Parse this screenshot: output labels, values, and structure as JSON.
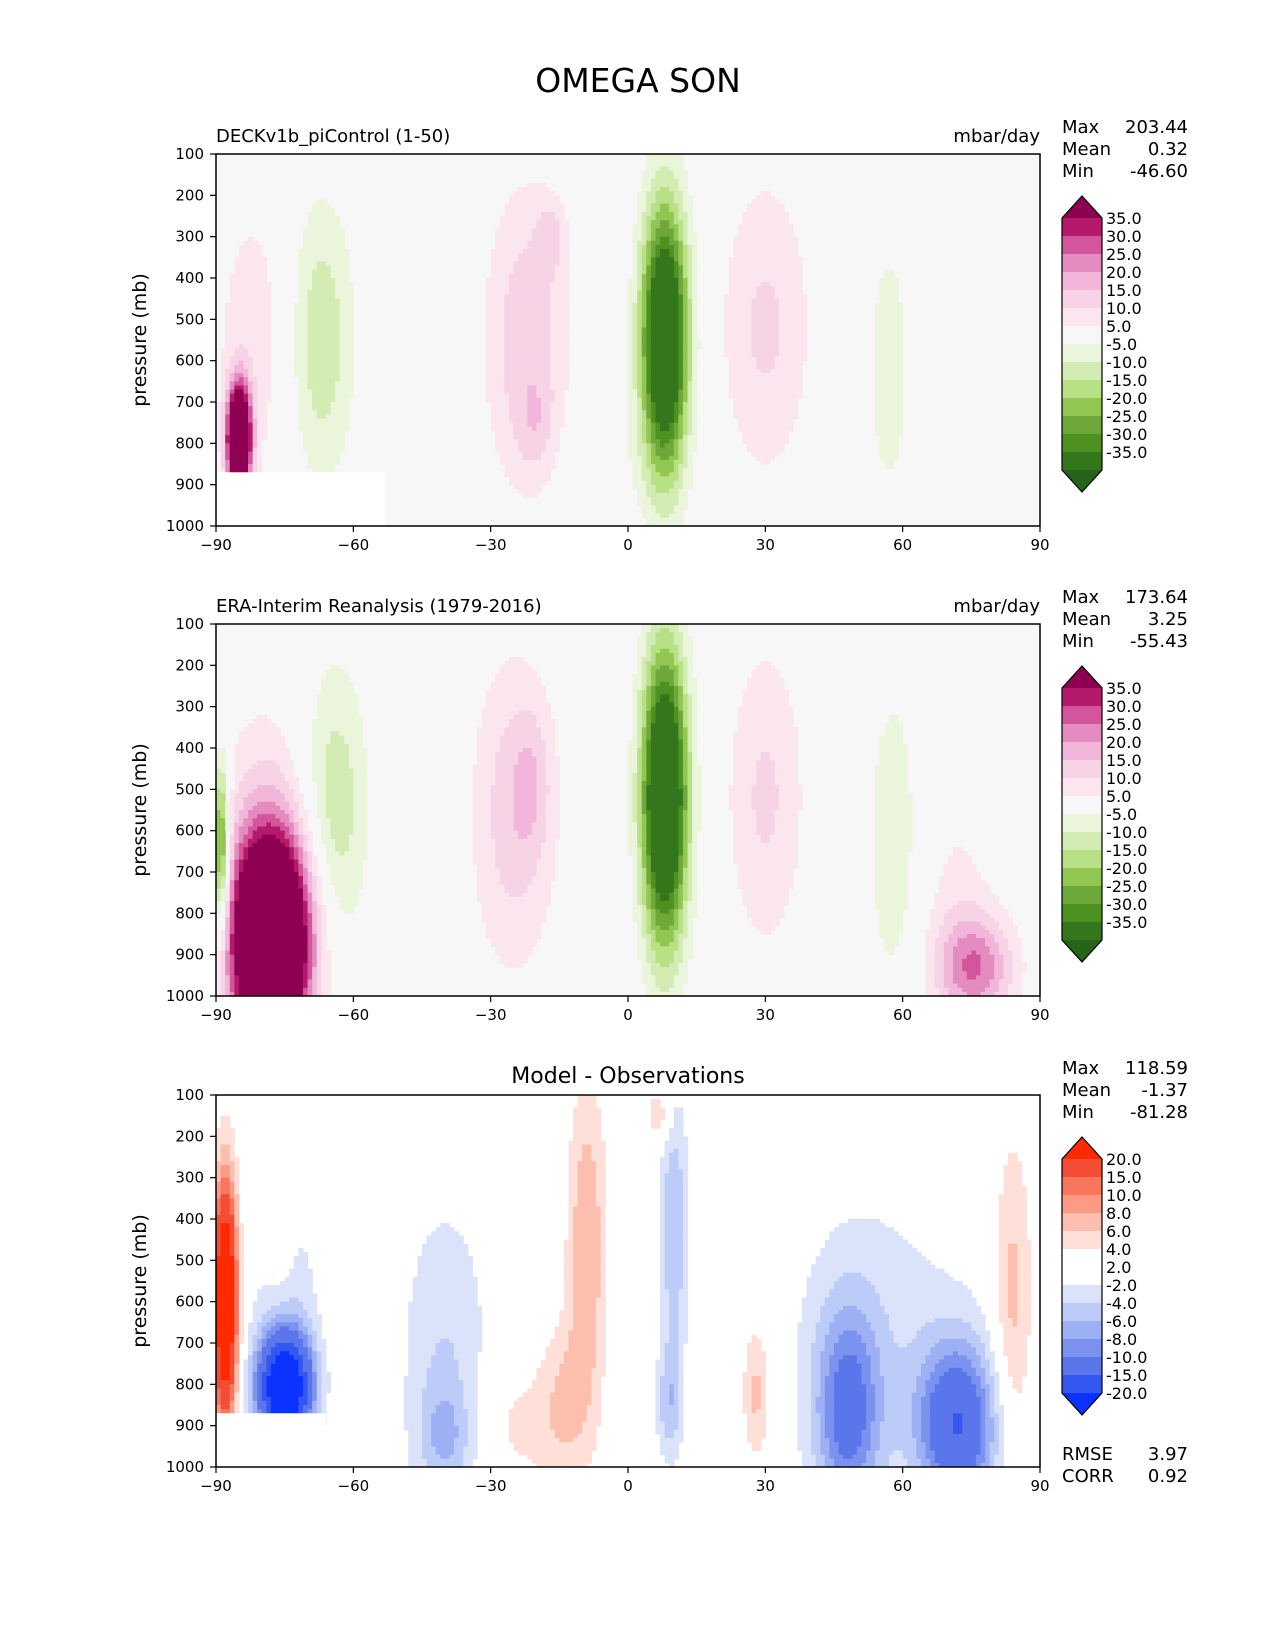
{
  "figure": {
    "title": "OMEGA SON"
  },
  "colors": {
    "pos_model": [
      "#f7f7f7",
      "#fbe5ef",
      "#f7d3e6",
      "#f1b6da",
      "#e48cc0",
      "#d3569d",
      "#b4196a",
      "#8e0152"
    ],
    "neg_model": [
      "#eaf5db",
      "#d2ecb3",
      "#b8e186",
      "#92c653",
      "#6fa83a",
      "#4d9221",
      "#33761c",
      "#276419"
    ],
    "pos_diff": [
      "#ffffff",
      "#fee0d8",
      "#fcbfae",
      "#fc9a85",
      "#f8755e",
      "#f44d35",
      "#ff2a00"
    ],
    "neg_diff": [
      "#dbe3fb",
      "#bccbf7",
      "#9db0f3",
      "#7b93ee",
      "#5a76ea",
      "#3357f0",
      "#0a33ff"
    ]
  },
  "chart_data": [
    {
      "type": "contour",
      "panel": "top",
      "left_title": "DECKv1b_piControl (1-50)",
      "right_title": "mbar/day",
      "ylabel": "pressure (mb)",
      "xlim": [
        -90,
        90
      ],
      "ylim": [
        1000,
        100
      ],
      "xticks": [
        "−90",
        "−60",
        "−30",
        "0",
        "30",
        "60",
        "90"
      ],
      "yticks": [
        "100",
        "200",
        "300",
        "400",
        "500",
        "600",
        "700",
        "800",
        "900",
        "1000"
      ],
      "stats": [
        {
          "label": "Max",
          "value": "203.44"
        },
        {
          "label": "Mean",
          "value": "0.32"
        },
        {
          "label": "Min",
          "value": "-46.60"
        }
      ],
      "colorbar_labels": [
        "35.0",
        "30.0",
        "25.0",
        "20.0",
        "15.0",
        "10.0",
        "5.0",
        "-5.0",
        "-10.0",
        "-15.0",
        "-20.0",
        "-25.0",
        "-30.0",
        "-35.0"
      ],
      "features": [
        {
          "x": 8,
          "p": 550,
          "sx": 3.6,
          "sp": 230,
          "amp": -55
        },
        {
          "x": -22,
          "p": 550,
          "sx": 6.5,
          "sp": 260,
          "amp": 14
        },
        {
          "x": -17,
          "p": 300,
          "sx": 2.2,
          "sp": 60,
          "amp": 8
        },
        {
          "x": -20,
          "p": 760,
          "sx": 3,
          "sp": 80,
          "amp": 6
        },
        {
          "x": 30,
          "p": 520,
          "sx": 7,
          "sp": 260,
          "amp": 11
        },
        {
          "x": -67,
          "p": 550,
          "sx": 5,
          "sp": 240,
          "amp": -14
        },
        {
          "x": -82,
          "p": 550,
          "sx": 6,
          "sp": 260,
          "amp": 8
        },
        {
          "x": -85,
          "p": 790,
          "sx": 1.8,
          "sp": 90,
          "amp": 70
        },
        {
          "x": 57,
          "p": 620,
          "sx": 4,
          "sp": 300,
          "amp": -7
        },
        {
          "x": -6,
          "p": 850,
          "sx": 8,
          "sp": 120,
          "amp": -3
        }
      ],
      "mask": {
        "x": [
          -90,
          -53
        ],
        "p": [
          870,
          1000
        ]
      }
    },
    {
      "type": "contour",
      "panel": "middle",
      "left_title": "ERA-Interim Reanalysis (1979-2016)",
      "right_title": "mbar/day",
      "ylabel": "pressure (mb)",
      "xlim": [
        -90,
        90
      ],
      "ylim": [
        1000,
        100
      ],
      "xticks": [
        "−90",
        "−60",
        "−30",
        "0",
        "30",
        "60",
        "90"
      ],
      "yticks": [
        "100",
        "200",
        "300",
        "400",
        "500",
        "600",
        "700",
        "800",
        "900",
        "1000"
      ],
      "stats": [
        {
          "label": "Max",
          "value": "173.64"
        },
        {
          "label": "Mean",
          "value": "3.25"
        },
        {
          "label": "Min",
          "value": "-55.43"
        }
      ],
      "colorbar_labels": [
        "35.0",
        "30.0",
        "25.0",
        "20.0",
        "15.0",
        "10.0",
        "5.0",
        "-5.0",
        "-10.0",
        "-15.0",
        "-20.0",
        "-25.0",
        "-30.0",
        "-35.0"
      ],
      "features": [
        {
          "x": 8,
          "p": 520,
          "sx": 3.5,
          "sp": 250,
          "amp": -58
        },
        {
          "x": -25,
          "p": 560,
          "sx": 6.5,
          "sp": 270,
          "amp": 13
        },
        {
          "x": -21,
          "p": 480,
          "sx": 3,
          "sp": 120,
          "amp": 7
        },
        {
          "x": 30,
          "p": 520,
          "sx": 6,
          "sp": 260,
          "amp": 11
        },
        {
          "x": -64,
          "p": 540,
          "sx": 5,
          "sp": 240,
          "amp": -14
        },
        {
          "x": -78,
          "p": 870,
          "sx": 6,
          "sp": 180,
          "amp": 80
        },
        {
          "x": -80,
          "p": 600,
          "sx": 7,
          "sp": 250,
          "amp": 8
        },
        {
          "x": -89,
          "p": 650,
          "sx": 1.3,
          "sp": 150,
          "amp": -35
        },
        {
          "x": 58,
          "p": 620,
          "sx": 4,
          "sp": 280,
          "amp": -9
        },
        {
          "x": 76,
          "p": 930,
          "sx": 6,
          "sp": 90,
          "amp": 22
        },
        {
          "x": 72,
          "p": 800,
          "sx": 6,
          "sp": 250,
          "amp": 6
        }
      ]
    },
    {
      "type": "contour",
      "panel": "bottom",
      "title": "Model - Observations",
      "ylabel": "pressure (mb)",
      "xlim": [
        -90,
        90
      ],
      "ylim": [
        1000,
        100
      ],
      "xticks": [
        "−90",
        "−60",
        "−30",
        "0",
        "30",
        "60",
        "90"
      ],
      "yticks": [
        "100",
        "200",
        "300",
        "400",
        "500",
        "600",
        "700",
        "800",
        "900",
        "1000"
      ],
      "stats": [
        {
          "label": "Max",
          "value": "118.59"
        },
        {
          "label": "Mean",
          "value": "-1.37"
        },
        {
          "label": "Min",
          "value": "-81.28"
        }
      ],
      "colorbar_labels": [
        "20.0",
        "15.0",
        "10.0",
        "8.0",
        "6.0",
        "4.0",
        "2.0",
        "-2.0",
        "-4.0",
        "-6.0",
        "-8.0",
        "-10.0",
        "-15.0",
        "-20.0"
      ],
      "extra_stats": [
        {
          "label": "RMSE",
          "value": "3.97"
        },
        {
          "label": "CORR",
          "value": "0.92"
        }
      ],
      "features": [
        {
          "x": -75,
          "p": 810,
          "sx": 4,
          "sp": 90,
          "amp": -28
        },
        {
          "x": -75,
          "p": 600,
          "sx": 5,
          "sp": 200,
          "amp": -4
        },
        {
          "x": -76,
          "p": 430,
          "sx": 2.5,
          "sp": 180,
          "amp": 3
        },
        {
          "x": -88,
          "p": 600,
          "sx": 1.8,
          "sp": 200,
          "amp": 25
        },
        {
          "x": -40,
          "p": 740,
          "sx": 7,
          "sp": 280,
          "amp": -4
        },
        {
          "x": -40,
          "p": 930,
          "sx": 4,
          "sp": 90,
          "amp": -4
        },
        {
          "x": -9,
          "p": 470,
          "sx": 3,
          "sp": 280,
          "amp": 6
        },
        {
          "x": -14,
          "p": 850,
          "sx": 4,
          "sp": 140,
          "amp": 4
        },
        {
          "x": -25,
          "p": 900,
          "sx": 6,
          "sp": 110,
          "amp": 2.5
        },
        {
          "x": 10,
          "p": 420,
          "sx": 2.2,
          "sp": 240,
          "amp": -6
        },
        {
          "x": 9,
          "p": 850,
          "sx": 2,
          "sp": 100,
          "amp": -5
        },
        {
          "x": 7,
          "p": 150,
          "sx": 2,
          "sp": 50,
          "amp": 4
        },
        {
          "x": 28,
          "p": 820,
          "sx": 2.2,
          "sp": 120,
          "amp": 5
        },
        {
          "x": 48,
          "p": 870,
          "sx": 5,
          "sp": 180,
          "amp": -10
        },
        {
          "x": 72,
          "p": 900,
          "sx": 6,
          "sp": 140,
          "amp": -14
        },
        {
          "x": 55,
          "p": 700,
          "sx": 15,
          "sp": 300,
          "amp": -3
        },
        {
          "x": 84,
          "p": 600,
          "sx": 3,
          "sp": 280,
          "amp": 5
        }
      ],
      "mask": {
        "x": [
          -90,
          -66
        ],
        "p": [
          870,
          1000
        ]
      }
    }
  ]
}
